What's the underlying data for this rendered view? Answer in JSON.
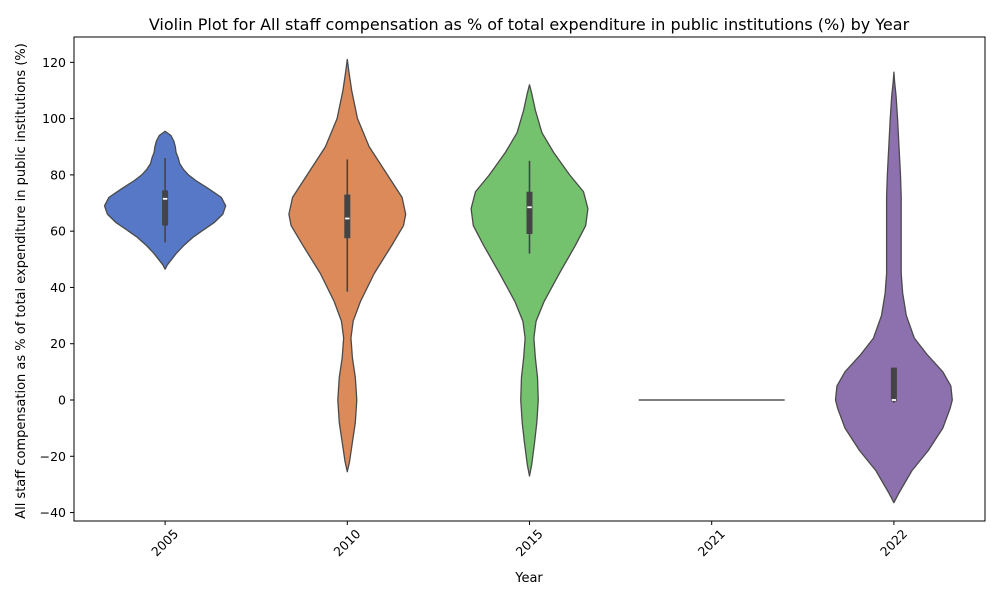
{
  "chart_data": {
    "type": "violin",
    "title": "Violin Plot for All staff compensation as % of total expenditure in public institutions (%) by Year",
    "xlabel": "Year",
    "ylabel": "All staff compensation as % of total expenditure in public institutions (%)",
    "ylim": [
      -43,
      129
    ],
    "yticks": [
      -40,
      -20,
      0,
      20,
      40,
      60,
      80,
      100,
      120
    ],
    "categories": [
      "2005",
      "2010",
      "2015",
      "2021",
      "2022"
    ],
    "grid": false,
    "colors": [
      "#5778c6",
      "#dd8a5b",
      "#74c26e",
      "#c44e52",
      "#8d70ae"
    ],
    "violins": [
      {
        "category": "2005",
        "density": [
          [
            46.5,
            0.0
          ],
          [
            48,
            0.03
          ],
          [
            50,
            0.09
          ],
          [
            52,
            0.15
          ],
          [
            55,
            0.26
          ],
          [
            58,
            0.39
          ],
          [
            60,
            0.5
          ],
          [
            63,
            0.67
          ],
          [
            66,
            0.79
          ],
          [
            69,
            0.83
          ],
          [
            72,
            0.77
          ],
          [
            75,
            0.6
          ],
          [
            78,
            0.42
          ],
          [
            80,
            0.32
          ],
          [
            82,
            0.25
          ],
          [
            84,
            0.2
          ],
          [
            86,
            0.18
          ],
          [
            88,
            0.15
          ],
          [
            90,
            0.14
          ],
          [
            92,
            0.12
          ],
          [
            94,
            0.08
          ],
          [
            95.5,
            0.0
          ]
        ],
        "q1": 62,
        "median": 71.5,
        "q3": 74.5,
        "whisker_low": 56,
        "whisker_high": 86
      },
      {
        "category": "2010",
        "density": [
          [
            -25.5,
            0.0
          ],
          [
            -22,
            0.03
          ],
          [
            -15,
            0.07
          ],
          [
            -8,
            0.11
          ],
          [
            0,
            0.13
          ],
          [
            8,
            0.11
          ],
          [
            15,
            0.07
          ],
          [
            22,
            0.05
          ],
          [
            28,
            0.08
          ],
          [
            35,
            0.18
          ],
          [
            45,
            0.37
          ],
          [
            55,
            0.61
          ],
          [
            62,
            0.77
          ],
          [
            66,
            0.8
          ],
          [
            72,
            0.75
          ],
          [
            80,
            0.55
          ],
          [
            90,
            0.3
          ],
          [
            100,
            0.14
          ],
          [
            110,
            0.06
          ],
          [
            117,
            0.02
          ],
          [
            121,
            0.0
          ]
        ],
        "q1": 57.5,
        "median": 64.5,
        "q3": 73,
        "whisker_low": 38.5,
        "whisker_high": 85.5
      },
      {
        "category": "2015",
        "density": [
          [
            -27,
            0.0
          ],
          [
            -23,
            0.03
          ],
          [
            -15,
            0.07
          ],
          [
            -8,
            0.1
          ],
          [
            0,
            0.12
          ],
          [
            8,
            0.11
          ],
          [
            15,
            0.08
          ],
          [
            22,
            0.06
          ],
          [
            28,
            0.09
          ],
          [
            35,
            0.2
          ],
          [
            45,
            0.41
          ],
          [
            55,
            0.63
          ],
          [
            62,
            0.77
          ],
          [
            68,
            0.8
          ],
          [
            74,
            0.74
          ],
          [
            80,
            0.55
          ],
          [
            88,
            0.33
          ],
          [
            95,
            0.17
          ],
          [
            103,
            0.08
          ],
          [
            109,
            0.03
          ],
          [
            112,
            0.0
          ]
        ],
        "q1": 59,
        "median": 68.5,
        "q3": 74,
        "whisker_low": 52,
        "whisker_high": 85
      },
      {
        "category": "2021",
        "density": [],
        "q1": 0,
        "median": 0,
        "q3": 0,
        "whisker_low": 0,
        "whisker_high": 0
      },
      {
        "category": "2022",
        "density": [
          [
            -36.5,
            0.0
          ],
          [
            -33,
            0.07
          ],
          [
            -25,
            0.25
          ],
          [
            -18,
            0.47
          ],
          [
            -10,
            0.67
          ],
          [
            -3,
            0.77
          ],
          [
            0,
            0.8
          ],
          [
            5,
            0.78
          ],
          [
            10,
            0.67
          ],
          [
            16,
            0.46
          ],
          [
            22,
            0.28
          ],
          [
            30,
            0.17
          ],
          [
            38,
            0.12
          ],
          [
            45,
            0.1
          ],
          [
            55,
            0.1
          ],
          [
            65,
            0.1
          ],
          [
            72,
            0.1
          ],
          [
            80,
            0.09
          ],
          [
            90,
            0.07
          ],
          [
            100,
            0.05
          ],
          [
            108,
            0.03
          ],
          [
            113,
            0.01
          ],
          [
            116.5,
            0.0
          ]
        ],
        "q1": -0.5,
        "median": 0,
        "q3": 11.5,
        "whisker_low": -1,
        "whisker_high": 11.5
      }
    ]
  }
}
